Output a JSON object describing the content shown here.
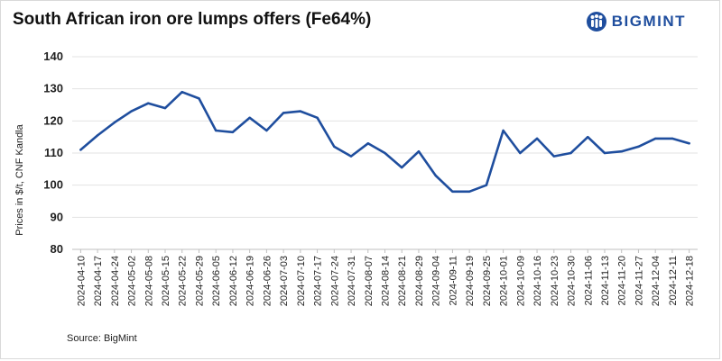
{
  "title": "South African iron ore lumps offers (Fe64%)",
  "logo": {
    "text": "BIGMINT",
    "icon": "bigmint-people-icon"
  },
  "source": "Source: BigMint",
  "colors": {
    "line": "#1f4e9e",
    "grid": "#e3e3e3",
    "brand": "#1f4e9e"
  },
  "chart_data": {
    "type": "line",
    "title": "South African iron ore lumps offers (Fe64%)",
    "xlabel": "",
    "ylabel": "Prices in $/t, CNF Kandla",
    "ylim": [
      80,
      140
    ],
    "yticks": [
      80,
      90,
      100,
      110,
      120,
      130,
      140
    ],
    "grid": "horizontal",
    "categories": [
      "2024-04-10",
      "2024-04-17",
      "2024-04-24",
      "2024-05-02",
      "2024-05-08",
      "2024-05-15",
      "2024-05-22",
      "2024-05-29",
      "2024-06-05",
      "2024-06-12",
      "2024-06-19",
      "2024-06-26",
      "2024-07-03",
      "2024-07-10",
      "2024-07-17",
      "2024-07-24",
      "2024-07-31",
      "2024-08-07",
      "2024-08-14",
      "2024-08-21",
      "2024-08-29",
      "2024-09-04",
      "2024-09-11",
      "2024-09-19",
      "2024-09-25",
      "2024-10-01",
      "2024-10-09",
      "2024-10-16",
      "2024-10-23",
      "2024-10-30",
      "2024-11-06",
      "2024-11-13",
      "2024-11-20",
      "2024-11-27",
      "2024-12-04",
      "2024-12-11",
      "2024-12-18"
    ],
    "series": [
      {
        "name": "",
        "values": [
          111,
          115.5,
          119.5,
          123,
          125.5,
          124,
          129,
          127,
          117,
          116.5,
          121,
          117,
          122.5,
          123,
          121,
          112,
          109,
          113,
          110,
          105.5,
          110.5,
          103,
          98,
          98,
          100,
          117,
          110,
          114.5,
          109,
          110,
          115,
          110,
          110.5,
          112,
          114.5,
          114.5,
          113
        ]
      }
    ]
  }
}
